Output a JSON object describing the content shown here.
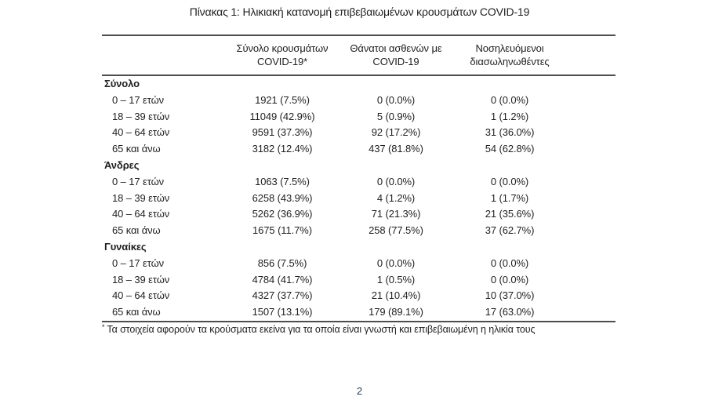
{
  "document": {
    "title": "Πίνακας 1: Ηλικιακή κατανομή επιβεβαιωμένων κρουσμάτων COVID-19",
    "page_number": "2"
  },
  "table": {
    "columns": [
      "Σύνολο κρουσμάτων\nCOVID-19*",
      "Θάνατοι ασθενών με\nCOVID-19",
      "Νοσηλευόμενοι\nδιασωληνωθέντες"
    ],
    "sections": [
      {
        "label": "Σύνολο",
        "rows": [
          {
            "label": "0 – 17 ετών",
            "cells": [
              "1921 (7.5%)",
              "0 (0.0%)",
              "0 (0.0%)"
            ]
          },
          {
            "label": "18 – 39 ετών",
            "cells": [
              "11049 (42.9%)",
              "5 (0.9%)",
              "1 (1.2%)"
            ]
          },
          {
            "label": "40 – 64 ετών",
            "cells": [
              "9591 (37.3%)",
              "92 (17.2%)",
              "31 (36.0%)"
            ]
          },
          {
            "label": "65 και άνω",
            "cells": [
              "3182 (12.4%)",
              "437 (81.8%)",
              "54 (62.8%)"
            ]
          }
        ]
      },
      {
        "label": "Άνδρες",
        "rows": [
          {
            "label": "0 – 17 ετών",
            "cells": [
              "1063 (7.5%)",
              "0 (0.0%)",
              "0 (0.0%)"
            ]
          },
          {
            "label": "18 – 39 ετών",
            "cells": [
              "6258 (43.9%)",
              "4 (1.2%)",
              "1 (1.7%)"
            ]
          },
          {
            "label": "40 – 64 ετών",
            "cells": [
              "5262 (36.9%)",
              "71 (21.3%)",
              "21 (35.6%)"
            ]
          },
          {
            "label": "65 και άνω",
            "cells": [
              "1675 (11.7%)",
              "258 (77.5%)",
              "37 (62.7%)"
            ]
          }
        ]
      },
      {
        "label": "Γυναίκες",
        "rows": [
          {
            "label": "0 – 17 ετών",
            "cells": [
              "856 (7.5%)",
              "0 (0.0%)",
              "0 (0.0%)"
            ]
          },
          {
            "label": "18 – 39 ετών",
            "cells": [
              "4784 (41.7%)",
              "1 (0.5%)",
              "0 (0.0%)"
            ]
          },
          {
            "label": "40 – 64 ετών",
            "cells": [
              "4327 (37.7%)",
              "21 (10.4%)",
              "10 (37.0%)"
            ]
          },
          {
            "label": "65 και άνω",
            "cells": [
              "1507 (13.1%)",
              "179 (89.1%)",
              "17 (63.0%)"
            ]
          }
        ]
      }
    ]
  },
  "footnote": {
    "marker": "*",
    "text": "Τα στοιχεία αφορούν τα κρούσματα εκείνα για τα οποία είναι γνωστή και επιβεβαιωμένη η ηλικία τους"
  },
  "colors": {
    "text": "#1f1f1f",
    "rule": "#4d4d4d",
    "page_number": "#2e4057"
  }
}
